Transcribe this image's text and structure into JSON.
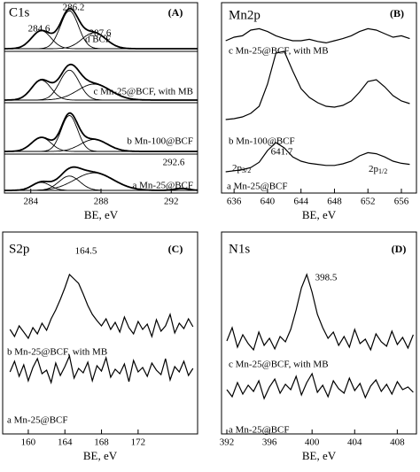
{
  "chart_data": [
    {
      "type": "line",
      "title": "C1s",
      "panel": "(A)",
      "xlabel": "BE, eV",
      "color": "#000000",
      "xlim": [
        282.5,
        293.5
      ],
      "xticks": [
        284,
        288,
        292
      ],
      "annotations": [
        284.6,
        286.2,
        287.6,
        292.6
      ],
      "series": [
        {
          "name": "d BCF",
          "peaks": [
            {
              "center": 284.6,
              "height": 0.45,
              "fwhm": 1.3
            },
            {
              "center": 286.2,
              "height": 0.95,
              "fwhm": 1.2
            },
            {
              "center": 287.6,
              "height": 0.4,
              "fwhm": 1.6
            }
          ]
        },
        {
          "name": "c Mn-25@BCF, with MB",
          "peaks": [
            {
              "center": 284.6,
              "height": 0.5,
              "fwhm": 1.3
            },
            {
              "center": 286.2,
              "height": 0.75,
              "fwhm": 1.3
            },
            {
              "center": 287.6,
              "height": 0.4,
              "fwhm": 2.2
            }
          ]
        },
        {
          "name": "b Mn-100@BCF",
          "peaks": [
            {
              "center": 284.6,
              "height": 0.35,
              "fwhm": 1.3
            },
            {
              "center": 286.2,
              "height": 0.9,
              "fwhm": 1.1
            },
            {
              "center": 287.6,
              "height": 0.3,
              "fwhm": 1.8
            }
          ]
        },
        {
          "name": "a Mn-25@BCF",
          "peaks": [
            {
              "center": 284.6,
              "height": 0.25,
              "fwhm": 1.2
            },
            {
              "center": 286.2,
              "height": 0.45,
              "fwhm": 1.4
            },
            {
              "center": 287.6,
              "height": 0.55,
              "fwhm": 2.6
            },
            {
              "center": 292.6,
              "height": 0.06,
              "fwhm": 1.0
            }
          ]
        }
      ]
    },
    {
      "type": "line",
      "title": "Mn2p",
      "panel": "(B)",
      "xlabel": "BE, eV",
      "color": "#000000",
      "xlim": [
        634.5,
        657.8
      ],
      "xticks": [
        636,
        640,
        644,
        648,
        652,
        656
      ],
      "annotations": [
        641.7
      ],
      "peak_labels": [
        {
          "main": "2p",
          "sub": "3/2"
        },
        {
          "main": "2p",
          "sub": "1/2"
        }
      ],
      "x": [
        635,
        636,
        637,
        638,
        639,
        640,
        641,
        642,
        643,
        644,
        645,
        646,
        647,
        648,
        649,
        650,
        651,
        652,
        653,
        654,
        655,
        656,
        657
      ],
      "series": [
        {
          "name": "c Mn-25@BCF, with MB",
          "values": [
            55,
            60,
            62,
            70,
            72,
            68,
            62,
            58,
            55,
            55,
            57,
            54,
            52,
            55,
            58,
            62,
            68,
            72,
            70,
            65,
            60,
            62,
            58
          ]
        },
        {
          "name": "b Mn-100@BCF",
          "values": [
            15,
            16,
            18,
            22,
            30,
            55,
            90,
            92,
            70,
            50,
            40,
            34,
            30,
            29,
            31,
            36,
            46,
            58,
            60,
            52,
            42,
            36,
            33
          ]
        },
        {
          "name": "a Mn-25@BCF",
          "values": [
            10,
            12,
            14,
            18,
            28,
            50,
            65,
            55,
            38,
            30,
            26,
            24,
            22,
            22,
            25,
            30,
            40,
            46,
            44,
            38,
            30,
            26,
            24
          ]
        }
      ]
    },
    {
      "type": "line",
      "title": "S2p",
      "panel": "(C)",
      "xlabel": "BE, eV",
      "color": "#000000",
      "xlim": [
        157.2,
        178.5
      ],
      "xticks": [
        160,
        164,
        168,
        172
      ],
      "annotations": [
        164.5
      ],
      "x": [
        158,
        158.5,
        159,
        159.5,
        160,
        160.5,
        161,
        161.5,
        162,
        162.5,
        163,
        163.5,
        164,
        164.5,
        165,
        165.5,
        166,
        166.5,
        167,
        167.5,
        168,
        168.5,
        169,
        169.5,
        170,
        170.5,
        171,
        171.5,
        172,
        172.5,
        173,
        173.5,
        174,
        174.5,
        175,
        175.5,
        176,
        176.5,
        177,
        177.5,
        178
      ],
      "series": [
        {
          "name": "b Mn-25@BCF, with MB",
          "values": [
            38,
            30,
            42,
            35,
            28,
            40,
            33,
            45,
            37,
            50,
            60,
            72,
            85,
            100,
            95,
            90,
            78,
            65,
            55,
            48,
            42,
            50,
            38,
            46,
            35,
            52,
            40,
            33,
            47,
            38,
            44,
            30,
            49,
            36,
            42,
            55,
            34,
            45,
            39,
            50,
            41
          ]
        },
        {
          "name": "a Mn-25@BCF",
          "values": [
            40,
            52,
            35,
            48,
            30,
            45,
            55,
            38,
            42,
            28,
            50,
            36,
            46,
            58,
            33,
            44,
            39,
            51,
            30,
            47,
            41,
            56,
            34,
            43,
            38,
            49,
            29,
            53,
            40,
            45,
            35,
            50,
            42,
            37,
            55,
            31,
            46,
            40,
            52,
            36,
            44
          ]
        }
      ]
    },
    {
      "type": "line",
      "title": "N1s",
      "panel": "(D)",
      "xlabel": "BE, eV",
      "color": "#000000",
      "xlim": [
        391.5,
        409.8
      ],
      "xticks": [
        392,
        396,
        400,
        404,
        408
      ],
      "annotations": [
        398.5
      ],
      "x": [
        392,
        392.5,
        393,
        393.5,
        394,
        394.5,
        395,
        395.5,
        396,
        396.5,
        397,
        397.5,
        398,
        398.5,
        399,
        399.5,
        400,
        400.5,
        401,
        401.5,
        402,
        402.5,
        403,
        403.5,
        404,
        404.5,
        405,
        405.5,
        406,
        406.5,
        407,
        407.5,
        408,
        408.5,
        409,
        409.5
      ],
      "series": [
        {
          "name": "c Mn-25@BCF, with MB",
          "values": [
            45,
            60,
            38,
            52,
            42,
            35,
            55,
            40,
            48,
            36,
            50,
            44,
            58,
            80,
            105,
            120,
            100,
            75,
            60,
            48,
            55,
            40,
            50,
            38,
            58,
            42,
            47,
            35,
            53,
            44,
            39,
            56,
            41,
            49,
            37,
            52
          ]
        },
        {
          "name": "a Mn-25@BCF",
          "values": [
            30,
            22,
            38,
            25,
            35,
            28,
            40,
            20,
            33,
            42,
            26,
            36,
            30,
            45,
            24,
            38,
            48,
            27,
            35,
            22,
            40,
            31,
            26,
            43,
            29,
            37,
            21,
            34,
            41,
            28,
            36,
            25,
            39,
            30,
            33,
            27
          ]
        }
      ]
    }
  ]
}
